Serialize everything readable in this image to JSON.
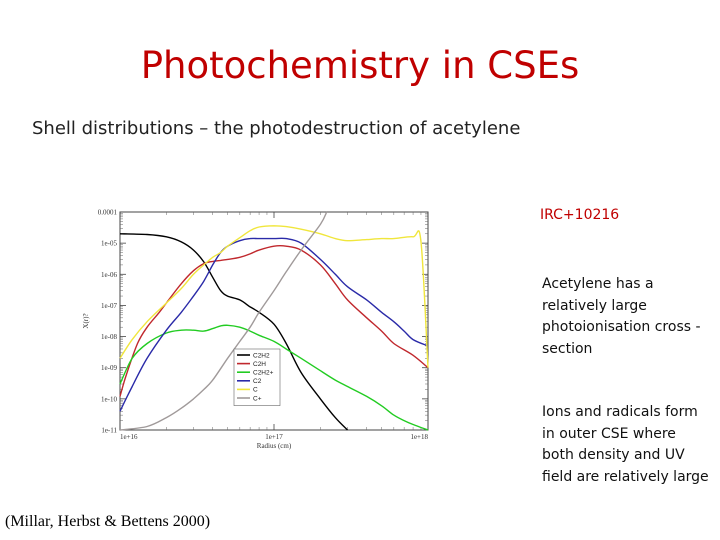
{
  "slide": {
    "title": "Photochemistry in CSEs",
    "subtitle": "Shell distributions – the photodestruction of acetylene",
    "source_label": "IRC+10216",
    "notes": [
      "Acetylene has a relatively large photoionisation cross -section",
      "Ions and radicals form in outer CSE where both density and UV field are relatively large"
    ],
    "citation": "(Millar, Herbst & Bettens 2000)"
  },
  "chart_data": {
    "type": "line",
    "xlabel": "Radius (cm)",
    "ylabel": "X(r)?",
    "x_scale": "log",
    "y_scale": "log",
    "xlim": [
      1e+16,
      1e+18
    ],
    "ylim": [
      1e-11,
      0.0001
    ],
    "x_ticks": [
      {
        "value": 1e+16,
        "label": "1e+16"
      },
      {
        "value": 1e+17,
        "label": "1e+17"
      },
      {
        "value": 1e+18,
        "label": "1e+18"
      }
    ],
    "y_ticks": [
      {
        "value": 0.0001,
        "label": "0.0001"
      },
      {
        "value": 1e-05,
        "label": "1e-05"
      },
      {
        "value": 1e-06,
        "label": "1e-06"
      },
      {
        "value": 1e-07,
        "label": "1e-07"
      },
      {
        "value": 1e-08,
        "label": "1e-08"
      },
      {
        "value": 1e-09,
        "label": "1e-09"
      },
      {
        "value": 1e-10,
        "label": "1e-10"
      },
      {
        "value": 1e-11,
        "label": "1e-11"
      }
    ],
    "legend_position": "lower-center",
    "series": [
      {
        "name": "C2H2",
        "color": "#000000",
        "x": [
          1e+16,
          1.5e+16,
          2e+16,
          2.5e+16,
          3e+16,
          3.5e+16,
          4e+16,
          4.5e+16,
          5e+16,
          6e+16,
          7e+16,
          8e+16,
          1e+17,
          1.2e+17,
          1.5e+17,
          2e+17,
          2.5e+17,
          3e+17
        ],
        "y": [
          2e-05,
          1.9e-05,
          1.6e-05,
          1.1e-05,
          6e-06,
          2.5e-06,
          8e-07,
          3e-07,
          2e-07,
          1.5e-07,
          9e-08,
          6e-08,
          2.5e-08,
          6e-09,
          7e-10,
          1e-10,
          2.5e-11,
          1e-11
        ]
      },
      {
        "name": "C2H",
        "color": "#c0282d",
        "x": [
          1e+16,
          1.1e+16,
          1.3e+16,
          1.5e+16,
          1.8e+16,
          2e+16,
          2.5e+16,
          3e+16,
          3.5e+16,
          4e+16,
          4.5e+16,
          5e+16,
          6e+16,
          7e+16,
          8e+16,
          1e+17,
          1.2e+17,
          1.5e+17,
          2e+17,
          2.5e+17,
          3e+17,
          4e+17,
          5e+17,
          6e+17,
          8e+17,
          1e+18
        ],
        "y": [
          1.2e-10,
          6e-10,
          6e-09,
          2e-08,
          6e-08,
          1.2e-07,
          5e-07,
          1.3e-06,
          2.2e-06,
          2.6e-06,
          2.8e-06,
          3e-06,
          3.5e-06,
          4.5e-06,
          6e-06,
          8e-06,
          8e-06,
          6e-06,
          2e-06,
          5e-07,
          1.5e-07,
          4e-08,
          1.5e-08,
          6e-09,
          2.5e-09,
          1e-09
        ]
      },
      {
        "name": "C2H2+",
        "color": "#22cc22",
        "x": [
          1e+16,
          1.2e+16,
          1.5e+16,
          2e+16,
          2.5e+16,
          3e+16,
          3.5e+16,
          4e+16,
          4.5e+16,
          5e+16,
          6e+16,
          7e+16,
          8e+16,
          1e+17,
          1.2e+17,
          1.5e+17,
          2e+17,
          2.5e+17,
          3e+17,
          4e+17,
          5e+17,
          6e+17,
          7e+17,
          8e+17,
          1e+18
        ],
        "y": [
          3e-10,
          2e-09,
          6e-09,
          1.3e-08,
          1.6e-08,
          1.6e-08,
          1.5e-08,
          1.8e-08,
          2.2e-08,
          2.3e-08,
          2e-08,
          1.5e-08,
          1.1e-08,
          7e-09,
          4e-09,
          2e-09,
          8e-10,
          4e-10,
          2.5e-10,
          1.2e-10,
          6e-11,
          3e-11,
          2e-11,
          1.5e-11,
          1e-11
        ]
      },
      {
        "name": "C2",
        "color": "#2a2aa8",
        "x": [
          1e+16,
          1.2e+16,
          1.5e+16,
          2e+16,
          2.5e+16,
          3e+16,
          3.5e+16,
          4e+16,
          4.5e+16,
          5e+16,
          6e+16,
          7e+16,
          8e+16,
          1e+17,
          1.2e+17,
          1.5e+17,
          2e+17,
          2.5e+17,
          3e+17,
          4e+17,
          5e+17,
          6e+17,
          7e+17,
          8e+17,
          1e+18
        ],
        "y": [
          4e-11,
          2.5e-10,
          2e-09,
          1.6e-08,
          6e-08,
          2e-07,
          6e-07,
          2e-06,
          5e-06,
          8e-06,
          1.2e-05,
          1.4e-05,
          1.4e-05,
          1.4e-05,
          1.4e-05,
          1e-05,
          3e-06,
          1e-06,
          4e-07,
          1.5e-07,
          6e-08,
          3e-08,
          1.5e-08,
          8e-09,
          5e-09
        ]
      },
      {
        "name": "C",
        "color": "#f0e63c",
        "x": [
          1e+16,
          1.2e+16,
          1.5e+16,
          2e+16,
          2.5e+16,
          3e+16,
          3.5e+16,
          4e+16,
          4.5e+16,
          5e+16,
          6e+16,
          7e+16,
          8e+16,
          1e+17,
          1.2e+17,
          1.5e+17,
          2e+17,
          2.5e+17,
          3e+17,
          4e+17,
          5e+17,
          6e+17,
          8e+17,
          9e+17,
          1e+18
        ],
        "y": [
          2e-09,
          8e-09,
          3e-08,
          1.2e-07,
          3.5e-07,
          1e-06,
          2e-06,
          3.5e-06,
          5e-06,
          8e-06,
          1.5e-05,
          2.5e-05,
          3.3e-05,
          3.6e-05,
          3.4e-05,
          2.8e-05,
          2e-05,
          1.4e-05,
          1.2e-05,
          1.3e-05,
          1.4e-05,
          1.4e-05,
          1.6e-05,
          1.1e-05,
          1e-09
        ]
      },
      {
        "name": "C+",
        "color": "#a09a9a",
        "x": [
          1e+16,
          1.5e+16,
          2e+16,
          2.5e+16,
          3e+16,
          3.5e+16,
          4e+16,
          5e+16,
          6e+16,
          7e+16,
          8e+16,
          1e+17,
          1.2e+17,
          1.5e+17,
          2e+17,
          2.2e+17
        ],
        "y": [
          1e-11,
          1.3e-11,
          2.5e-11,
          5e-11,
          1e-10,
          2e-10,
          4e-10,
          2e-09,
          7e-09,
          2e-08,
          6e-08,
          3e-07,
          1.2e-06,
          6e-06,
          4e-05,
          0.0001
        ]
      }
    ]
  }
}
